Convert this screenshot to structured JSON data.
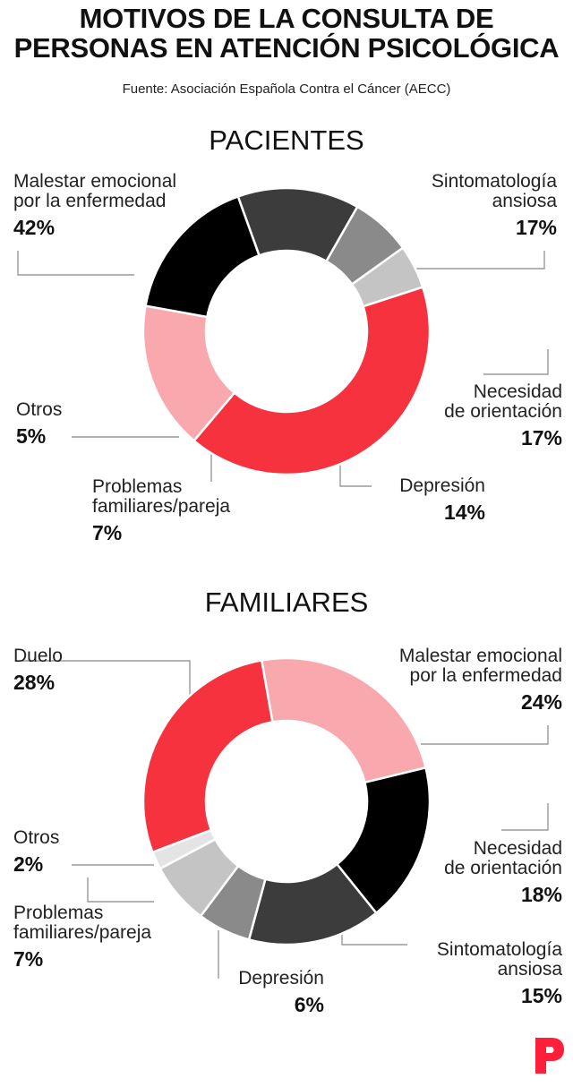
{
  "header": {
    "title_line1": "MOTIVOS DE LA CONSULTA DE",
    "title_line2": "PERSONAS EN ATENCIÓN PSICOLÓGICA",
    "source": "Fuente: Asociación Española Contra el Cáncer (AECC)"
  },
  "brand": {
    "logo_letter": "P",
    "color": "#ff1f3a"
  },
  "chart_data": [
    {
      "type": "pie",
      "title": "PACIENTES",
      "slices": [
        {
          "name": "Malestar emocional por la enfermedad",
          "value": 42,
          "label": "42%",
          "color": "#f5323e"
        },
        {
          "name": "Sintomatología ansiosa",
          "value": 17,
          "label": "17%",
          "color": "#f9a9ad"
        },
        {
          "name": "Necesidad de orientación",
          "value": 17,
          "label": "17%",
          "color": "#000000"
        },
        {
          "name": "Depresión",
          "value": 14,
          "label": "14%",
          "color": "#3c3c3c"
        },
        {
          "name": "Problemas familiares/pareja",
          "value": 7,
          "label": "7%",
          "color": "#8a8a8a"
        },
        {
          "name": "Otros",
          "value": 5,
          "label": "5%",
          "color": "#c4c4c4"
        }
      ]
    },
    {
      "type": "pie",
      "title": "FAMILIARES",
      "slices": [
        {
          "name": "Malestar emocional por la enfermedad",
          "value": 24,
          "label": "24%",
          "color": "#f9a9ad"
        },
        {
          "name": "Necesidad de orientación",
          "value": 18,
          "label": "18%",
          "color": "#000000"
        },
        {
          "name": "Sintomatología ansiosa",
          "value": 15,
          "label": "15%",
          "color": "#3c3c3c"
        },
        {
          "name": "Depresión",
          "value": 6,
          "label": "6%",
          "color": "#8a8a8a"
        },
        {
          "name": "Problemas familiares/pareja",
          "value": 7,
          "label": "7%",
          "color": "#c4c4c4"
        },
        {
          "name": "Otros",
          "value": 2,
          "label": "2%",
          "color": "#e4e4e4"
        },
        {
          "name": "Duelo",
          "value": 28,
          "label": "28%",
          "color": "#f5323e"
        }
      ]
    }
  ],
  "labels": {
    "pacientes": {
      "malestar_l1": "Malestar emocional",
      "malestar_l2": "por la enfermedad",
      "ansiosa_l1": "Sintomatología",
      "ansiosa_l2": "ansiosa",
      "orientacion_l1": "Necesidad",
      "orientacion_l2": "de orientación",
      "depresion": "Depresión",
      "problemas_l1": "Problemas",
      "problemas_l2": "familiares/pareja",
      "otros": "Otros"
    },
    "familiares": {
      "duelo": "Duelo",
      "malestar_l1": "Malestar emocional",
      "malestar_l2": "por la enfermedad",
      "orientacion_l1": "Necesidad",
      "orientacion_l2": "de orientación",
      "ansiosa_l1": "Sintomatología",
      "ansiosa_l2": "ansiosa",
      "depresion": "Depresión",
      "problemas_l1": "Problemas",
      "problemas_l2": "familiares/pareja",
      "otros": "Otros"
    }
  }
}
